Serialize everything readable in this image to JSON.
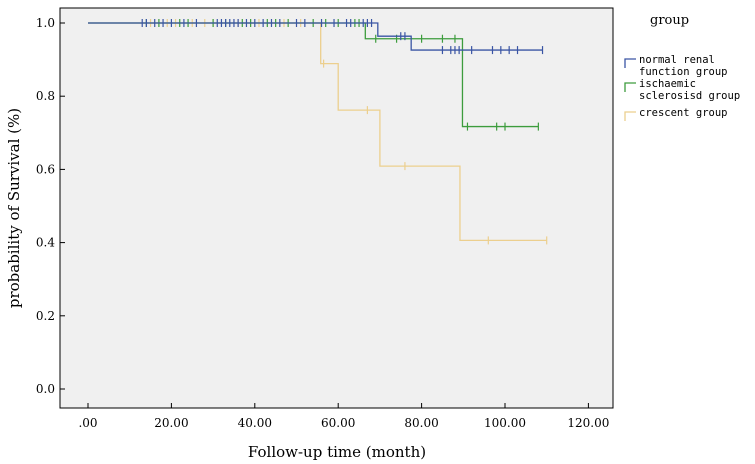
{
  "chart_data": {
    "type": "line",
    "subtype": "kaplan-meier-step",
    "title": "",
    "xlabel": "Follow-up time (month)",
    "ylabel": "probability of Survival (%)",
    "xlim": [
      0,
      125
    ],
    "ylim": [
      0,
      1.05
    ],
    "xticks": [
      0,
      20,
      40,
      60,
      80,
      100,
      120
    ],
    "xtick_labels": [
      ".00",
      "20.00",
      "40.00",
      "60.00",
      "80.00",
      "100.00",
      "120.00"
    ],
    "yticks": [
      0,
      0.2,
      0.4,
      0.6,
      0.8,
      1.0
    ],
    "ytick_labels": [
      "0.0",
      "0.2",
      "0.4",
      "0.6",
      "0.8",
      "1.0"
    ],
    "grid": false,
    "plot_background": "#f0f0f0",
    "legend": {
      "title": "group",
      "placement": "right"
    },
    "series": [
      {
        "name_lines": [
          "normal renal",
          "function group"
        ],
        "color": "#3a55a4",
        "steps": [
          [
            0,
            1.0
          ],
          [
            69.5,
            0.964
          ],
          [
            77.5,
            0.926
          ],
          [
            109,
            0.926
          ]
        ],
        "censored": [
          [
            13,
            1.0
          ],
          [
            14,
            1.0
          ],
          [
            16,
            1.0
          ],
          [
            18,
            1.0
          ],
          [
            20,
            1.0
          ],
          [
            23,
            1.0
          ],
          [
            26,
            1.0
          ],
          [
            31,
            1.0
          ],
          [
            32,
            1.0
          ],
          [
            33,
            1.0
          ],
          [
            34,
            1.0
          ],
          [
            35,
            1.0
          ],
          [
            36,
            1.0
          ],
          [
            38,
            1.0
          ],
          [
            40,
            1.0
          ],
          [
            42,
            1.0
          ],
          [
            44,
            1.0
          ],
          [
            46,
            1.0
          ],
          [
            50,
            1.0
          ],
          [
            52,
            1.0
          ],
          [
            56,
            1.0
          ],
          [
            59,
            1.0
          ],
          [
            62,
            1.0
          ],
          [
            63,
            1.0
          ],
          [
            66,
            1.0
          ],
          [
            67,
            1.0
          ],
          [
            68,
            1.0
          ],
          [
            75,
            0.964
          ],
          [
            76,
            0.964
          ],
          [
            85,
            0.926
          ],
          [
            87,
            0.926
          ],
          [
            88,
            0.926
          ],
          [
            89,
            0.926
          ],
          [
            92,
            0.926
          ],
          [
            97,
            0.926
          ],
          [
            99,
            0.926
          ],
          [
            101,
            0.926
          ],
          [
            103,
            0.926
          ],
          [
            109,
            0.926
          ]
        ]
      },
      {
        "name_lines": [
          "ischaemic",
          "sclerosisd group"
        ],
        "color": "#3d9c3d",
        "steps": [
          [
            0,
            1.0
          ],
          [
            66.5,
            0.957
          ],
          [
            89.8,
            0.717
          ],
          [
            108,
            0.717
          ]
        ],
        "censored": [
          [
            14,
            1.0
          ],
          [
            17,
            1.0
          ],
          [
            22,
            1.0
          ],
          [
            24,
            1.0
          ],
          [
            30,
            1.0
          ],
          [
            33,
            1.0
          ],
          [
            37,
            1.0
          ],
          [
            39,
            1.0
          ],
          [
            43,
            1.0
          ],
          [
            45,
            1.0
          ],
          [
            48,
            1.0
          ],
          [
            54,
            1.0
          ],
          [
            57,
            1.0
          ],
          [
            60,
            1.0
          ],
          [
            64,
            1.0
          ],
          [
            65,
            1.0
          ],
          [
            69,
            0.957
          ],
          [
            74,
            0.957
          ],
          [
            80,
            0.957
          ],
          [
            85,
            0.957
          ],
          [
            88,
            0.957
          ],
          [
            91,
            0.717
          ],
          [
            98,
            0.717
          ],
          [
            100,
            0.717
          ],
          [
            108,
            0.717
          ]
        ]
      },
      {
        "name_lines": [
          "crescent group"
        ],
        "color": "#eccf8e",
        "steps": [
          [
            0,
            1.0
          ],
          [
            55.8,
            0.889
          ],
          [
            60,
            0.762
          ],
          [
            70,
            0.609
          ],
          [
            89.2,
            0.406
          ],
          [
            110,
            0.406
          ]
        ],
        "censored": [
          [
            15,
            1.0
          ],
          [
            19,
            1.0
          ],
          [
            21,
            1.0
          ],
          [
            25,
            1.0
          ],
          [
            28,
            1.0
          ],
          [
            30,
            1.0
          ],
          [
            36,
            1.0
          ],
          [
            41,
            1.0
          ],
          [
            47,
            1.0
          ],
          [
            51,
            1.0
          ],
          [
            56.5,
            0.889
          ],
          [
            67,
            0.762
          ],
          [
            76,
            0.609
          ],
          [
            96,
            0.406
          ],
          [
            110,
            0.406
          ]
        ]
      }
    ]
  }
}
